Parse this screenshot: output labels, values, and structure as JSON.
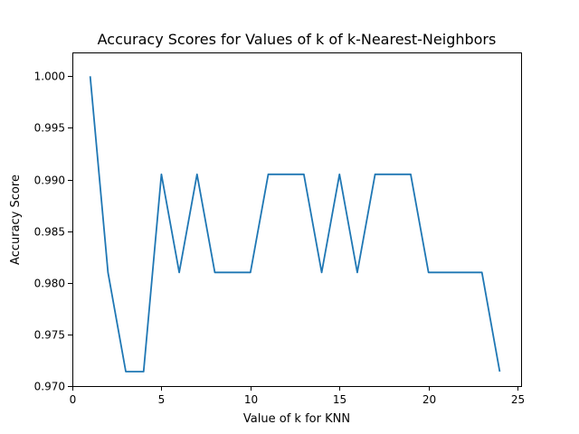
{
  "chart_data": {
    "type": "line",
    "title": "Accuracy Scores for Values of k of k-Nearest-Neighbors",
    "xlabel": "Value of k for KNN",
    "ylabel": "Accuracy Score",
    "xlim": [
      0,
      25.2
    ],
    "ylim": [
      0.97,
      1.0023
    ],
    "xticks": [
      0,
      5,
      10,
      15,
      20,
      25
    ],
    "xtick_labels": [
      "0",
      "5",
      "10",
      "15",
      "20",
      "25"
    ],
    "yticks": [
      0.97,
      0.975,
      0.98,
      0.985,
      0.99,
      0.995,
      1.0
    ],
    "ytick_labels": [
      "0.970",
      "0.975",
      "0.980",
      "0.985",
      "0.990",
      "0.995",
      "1.000"
    ],
    "grid": false,
    "colors": {
      "line": "#1f77b4"
    },
    "series": [
      {
        "x": [
          1,
          2,
          3,
          4,
          5,
          6,
          7,
          8,
          9,
          10,
          11,
          12,
          13,
          14,
          15,
          16,
          17,
          18,
          19,
          20,
          21,
          22,
          23,
          24
        ],
        "y": [
          1.0,
          0.981,
          0.9714,
          0.9714,
          0.9905,
          0.981,
          0.9905,
          0.981,
          0.981,
          0.981,
          0.9905,
          0.9905,
          0.9905,
          0.981,
          0.9905,
          0.981,
          0.9905,
          0.9905,
          0.9905,
          0.981,
          0.981,
          0.981,
          0.981,
          0.9714
        ]
      }
    ]
  }
}
